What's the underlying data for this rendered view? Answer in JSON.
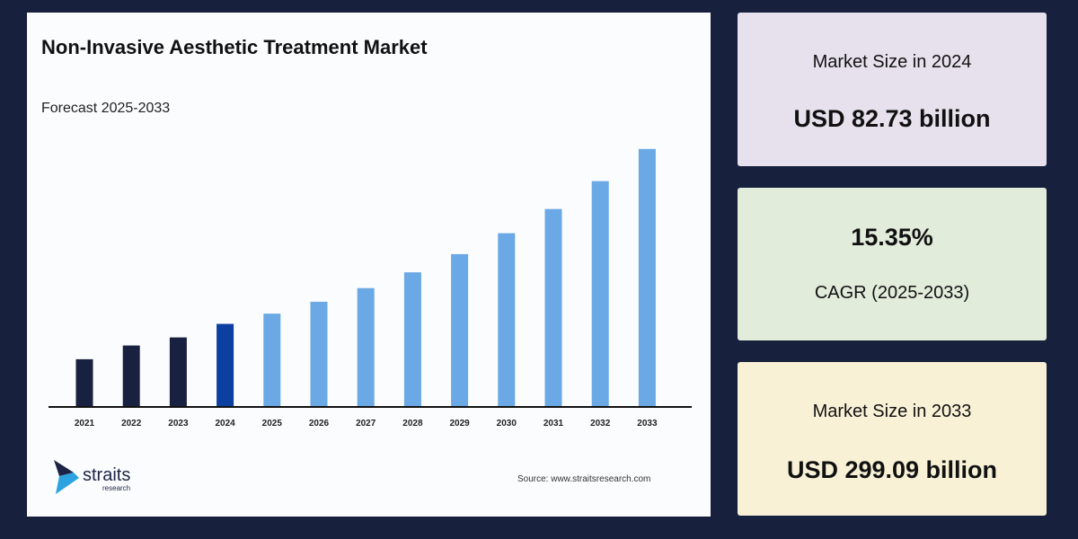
{
  "title": "Non-Invasive Aesthetic Treatment Market",
  "subtitle": "Forecast 2025-2033",
  "source": "Source: www.straitsresearch.com",
  "logo": {
    "text": "straits",
    "sub": "research"
  },
  "cards": [
    {
      "label": "Market Size in 2024",
      "value": "USD 82.73 billion",
      "color": "#e6e1ed"
    },
    {
      "value": "15.35%",
      "label": "CAGR (2025-2033)",
      "color": "#e2ecdb"
    },
    {
      "label": "Market Size in 2033",
      "value": "USD 299.09 billion",
      "color": "#f8f1d6"
    }
  ],
  "chart_data": {
    "type": "bar",
    "title": "Non-Invasive Aesthetic Treatment Market",
    "subtitle": "Forecast 2025-2033",
    "categories": [
      "2021",
      "2022",
      "2023",
      "2024",
      "2025",
      "2026",
      "2027",
      "2028",
      "2029",
      "2030",
      "2031",
      "2032",
      "2033"
    ],
    "values": [
      39,
      56,
      66,
      82.73,
      95.4,
      110.1,
      127.0,
      146.5,
      169.0,
      194.9,
      224.8,
      259.3,
      299.09
    ],
    "colors": {
      "historical": "#18213f",
      "base_year": "#0b3fa1",
      "forecast": "#6aa9e5"
    },
    "grid": false,
    "legend": "none"
  }
}
